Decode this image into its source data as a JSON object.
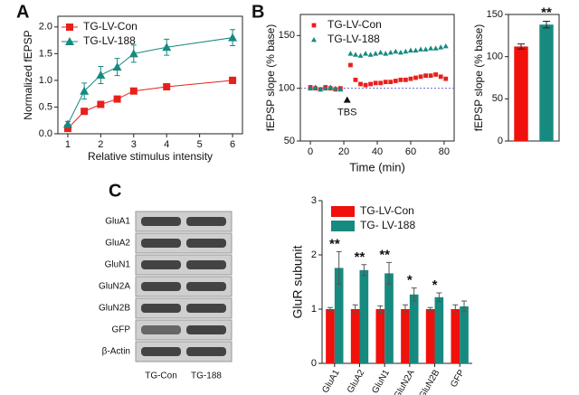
{
  "panels": [
    "A",
    "B",
    "C"
  ],
  "chart_data": [
    {
      "type": "line",
      "x_label": "Relative stimulus intensity",
      "y_label": "Normalized fEPSP",
      "x": [
        1,
        1.5,
        2,
        2.5,
        3,
        4,
        6
      ],
      "series": [
        {
          "name": "TG-LV-Con",
          "color": "#e8201c",
          "marker": "square",
          "values": [
            0.1,
            0.42,
            0.55,
            0.65,
            0.8,
            0.88,
            1.0
          ],
          "errors": [
            0.03,
            0.04,
            0.04,
            0.04,
            0.05,
            0.05,
            0.06
          ]
        },
        {
          "name": "TG-LV-188",
          "color": "#178a80",
          "marker": "triangle",
          "values": [
            0.18,
            0.8,
            1.1,
            1.25,
            1.5,
            1.62,
            1.8
          ],
          "errors": [
            0.05,
            0.15,
            0.16,
            0.16,
            0.16,
            0.15,
            0.15
          ]
        }
      ],
      "xlim": [
        0.7,
        6.3
      ],
      "xticks": [
        1,
        2,
        3,
        4,
        5,
        6
      ],
      "ylim": [
        0,
        2.2
      ],
      "yticks": [
        {
          "value": 0,
          "label": "0.0"
        },
        {
          "value": 0.5,
          "label": "0.5"
        },
        {
          "value": 1,
          "label": "1.0"
        },
        {
          "value": 1.5,
          "label": "1.5"
        },
        {
          "value": 2,
          "label": "2.0"
        }
      ],
      "legend": "upper left",
      "box": true
    },
    {
      "type": "scatter",
      "x_label": "Time (min)",
      "y_label": "fEPSP slope (% base)",
      "x": [
        0,
        3,
        6,
        9,
        12,
        15,
        18,
        24,
        27,
        30,
        33,
        36,
        39,
        42,
        45,
        48,
        51,
        54,
        57,
        60,
        63,
        66,
        69,
        72,
        75,
        78,
        81
      ],
      "series": [
        {
          "name": "TG-LV-Con",
          "color": "#e8201c",
          "marker": "square",
          "values": [
            101,
            100,
            99,
            101,
            100,
            99,
            100,
            122,
            108,
            104,
            103,
            104,
            105,
            105,
            106,
            106,
            107,
            108,
            108,
            109,
            110,
            111,
            112,
            112,
            113,
            111,
            109
          ]
        },
        {
          "name": "TG-LV-188",
          "color": "#178a80",
          "marker": "triangle",
          "values": [
            100,
            101,
            99,
            100,
            101,
            100,
            99,
            133,
            132,
            131,
            133,
            132,
            133,
            134,
            133,
            134,
            135,
            134,
            135,
            136,
            136,
            137,
            137,
            138,
            138,
            139,
            140
          ]
        }
      ],
      "xlim": [
        -6,
        86
      ],
      "xticks": [
        0,
        20,
        40,
        60,
        80
      ],
      "ylim": [
        50,
        170
      ],
      "yticks": [
        50,
        100,
        150
      ],
      "reference_line": 100,
      "annotation": {
        "text": "TBS",
        "x": 22
      },
      "legend": "upper center",
      "box": true
    },
    {
      "type": "bar",
      "y_label": "fEPSP slope (% base)",
      "categories": [
        null,
        null
      ],
      "values": [
        112,
        138
      ],
      "errors": [
        3,
        4
      ],
      "colors": [
        "#f0100c",
        "#178a80"
      ],
      "annotations": [
        null,
        "**"
      ],
      "ylim": [
        0,
        150
      ],
      "yticks": [
        0,
        50,
        100,
        150
      ],
      "box": true
    },
    {
      "type": "grouped_bar",
      "y_label": "GluR subunit",
      "categories": [
        "GluA1",
        "GluA2",
        "GluN1",
        "GluN2A",
        "GluN2B",
        "GFP"
      ],
      "series": [
        {
          "name": "TG-LV-Con",
          "color": "#f0100c",
          "values": [
            1,
            1,
            1,
            1,
            1,
            1
          ],
          "errors": [
            0.03,
            0.08,
            0.06,
            0.08,
            0.03,
            0.08
          ]
        },
        {
          "name": "TG- LV-188",
          "color": "#178a80",
          "values": [
            1.76,
            1.72,
            1.66,
            1.27,
            1.22,
            1.05
          ],
          "errors": [
            0.3,
            0.1,
            0.2,
            0.12,
            0.08,
            0.1
          ]
        }
      ],
      "annotations": [
        "**",
        "**",
        "**",
        "*",
        "*",
        null
      ],
      "ylim": [
        0,
        3
      ],
      "yticks": [
        0,
        1,
        2,
        3
      ],
      "legend": "upper left",
      "box": false
    }
  ],
  "blot": {
    "bands": [
      "GluA1",
      "GluA2",
      "GluN1",
      "GluN2A",
      "GluN2B",
      "GFP",
      "β-Actin"
    ],
    "lanes": [
      "TG-Con",
      "TG-188"
    ]
  }
}
